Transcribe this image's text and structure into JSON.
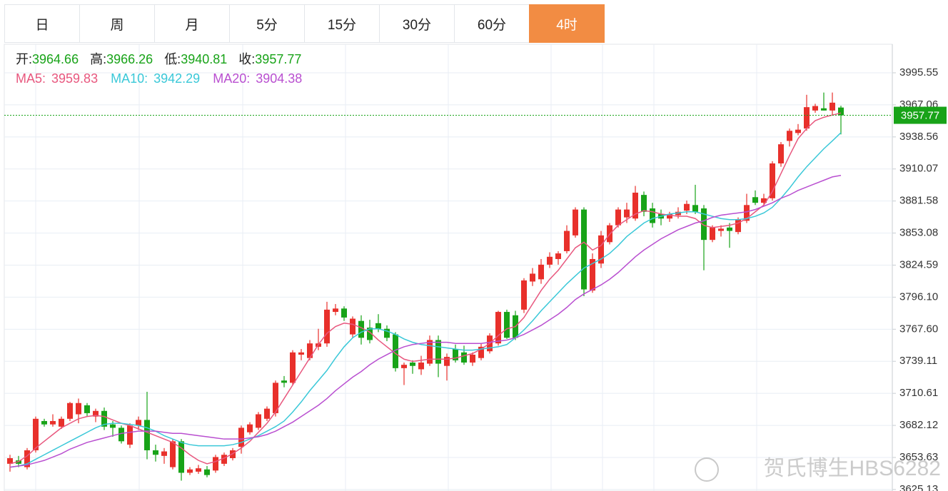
{
  "tabs": [
    "日",
    "周",
    "月",
    "5分",
    "15分",
    "30分",
    "60分",
    "4时"
  ],
  "active_tab": 7,
  "watermark": "贺氏博生HBS6282",
  "chart_data": {
    "type": "candlestick",
    "ohlc_labels": [
      "开:",
      "高:",
      "低:",
      "收:"
    ],
    "up_color": "#e8302b",
    "down_color": "#18a318",
    "grid": true,
    "ylim": [
      3623.81,
      4020.92
    ],
    "yticks": [
      3995.55,
      3967.06,
      3938.56,
      3910.07,
      3881.58,
      3853.08,
      3824.59,
      {
        "value": 3796.1,
        "label": "3796.10"
      },
      {
        "value": 3767.6,
        "label": "3767.60"
      },
      3739.11,
      3710.61,
      3682.12,
      3653.63,
      3625.13
    ],
    "candles": [
      [
        3648,
        3656,
        3641,
        3653
      ],
      [
        3651,
        3655,
        3645,
        3648
      ],
      [
        3645,
        3662,
        3643,
        3660
      ],
      [
        3660,
        3690,
        3658,
        3688
      ],
      [
        3686,
        3688,
        3681,
        3683
      ],
      [
        3683,
        3692,
        3681,
        3686
      ],
      [
        3681,
        3690,
        3679,
        3688
      ],
      [
        3688,
        3703,
        3686,
        3702
      ],
      [
        3692,
        3706,
        3684,
        3702
      ],
      [
        3700,
        3702,
        3690,
        3693
      ],
      [
        3690,
        3697,
        3685,
        3695
      ],
      [
        3695,
        3698,
        3678,
        3681
      ],
      [
        3683,
        3686,
        3672,
        3680
      ],
      [
        3680,
        3682,
        3666,
        3668
      ],
      [
        3665,
        3684,
        3662,
        3682
      ],
      [
        3682,
        3690,
        3678,
        3687
      ],
      [
        3687,
        3712,
        3652,
        3660
      ],
      [
        3660,
        3665,
        3650,
        3656
      ],
      [
        3655,
        3662,
        3648,
        3659
      ],
      [
        3645,
        3670,
        3643,
        3668
      ],
      [
        3668,
        3670,
        3633,
        3640
      ],
      [
        3640,
        3645,
        3638,
        3643
      ],
      [
        3641,
        3647,
        3639,
        3644
      ],
      [
        3643,
        3646,
        3636,
        3638
      ],
      [
        3642,
        3656,
        3640,
        3654
      ],
      [
        3648,
        3658,
        3646,
        3656
      ],
      [
        3653,
        3662,
        3651,
        3660
      ],
      [
        3663,
        3682,
        3657,
        3680
      ],
      [
        3676,
        3685,
        3674,
        3683
      ],
      [
        3680,
        3694,
        3678,
        3692
      ],
      [
        3688,
        3699,
        3686,
        3697
      ],
      [
        3693,
        3722,
        3690,
        3720
      ],
      [
        3722,
        3726,
        3716,
        3720
      ],
      [
        3720,
        3749,
        3718,
        3747
      ],
      [
        3745,
        3750,
        3740,
        3747
      ],
      [
        3742,
        3758,
        3740,
        3755
      ],
      [
        3752,
        3768,
        3749,
        3755
      ],
      [
        3755,
        3792,
        3752,
        3785
      ],
      [
        3783,
        3790,
        3780,
        3786
      ],
      [
        3786,
        3788,
        3775,
        3778
      ],
      [
        3763,
        3779,
        3760,
        3777
      ],
      [
        3775,
        3780,
        3754,
        3760
      ],
      [
        3769,
        3776,
        3755,
        3758
      ],
      [
        3773,
        3781,
        3765,
        3768
      ],
      [
        3768,
        3771,
        3757,
        3760
      ],
      [
        3763,
        3765,
        3730,
        3733
      ],
      [
        3733,
        3738,
        3718,
        3736
      ],
      [
        3738,
        3740,
        3728,
        3735
      ],
      [
        3732,
        3744,
        3727,
        3738
      ],
      [
        3737,
        3762,
        3735,
        3758
      ],
      [
        3758,
        3762,
        3725,
        3737
      ],
      [
        3735,
        3746,
        3722,
        3743
      ],
      [
        3750,
        3754,
        3738,
        3740
      ],
      [
        3747,
        3753,
        3736,
        3738
      ],
      [
        3738,
        3747,
        3735,
        3745
      ],
      [
        3742,
        3755,
        3740,
        3752
      ],
      [
        3748,
        3764,
        3746,
        3762
      ],
      [
        3755,
        3784,
        3753,
        3783
      ],
      [
        3783,
        3785,
        3759,
        3760
      ],
      [
        3780,
        3784,
        3758,
        3760
      ],
      [
        3785,
        3813,
        3782,
        3811
      ],
      [
        3810,
        3822,
        3806,
        3817
      ],
      [
        3812,
        3830,
        3808,
        3825
      ],
      [
        3825,
        3836,
        3822,
        3832
      ],
      [
        3830,
        3837,
        3825,
        3835
      ],
      [
        3837,
        3860,
        3835,
        3855
      ],
      [
        3851,
        3876,
        3849,
        3874
      ],
      [
        3874,
        3876,
        3797,
        3803
      ],
      [
        3802,
        3835,
        3800,
        3830
      ],
      [
        3826,
        3855,
        3822,
        3851
      ],
      [
        3845,
        3862,
        3843,
        3860
      ],
      [
        3860,
        3876,
        3858,
        3874
      ],
      [
        3867,
        3880,
        3862,
        3874
      ],
      [
        3866,
        3895,
        3864,
        3889
      ],
      [
        3887,
        3890,
        3868,
        3872
      ],
      [
        3875,
        3880,
        3858,
        3862
      ],
      [
        3870,
        3874,
        3860,
        3866
      ],
      [
        3866,
        3872,
        3863,
        3870
      ],
      [
        3869,
        3876,
        3866,
        3872
      ],
      [
        3873,
        3882,
        3870,
        3879
      ],
      [
        3878,
        3896,
        3870,
        3872
      ],
      [
        3875,
        3878,
        3820,
        3847
      ],
      [
        3847,
        3860,
        3845,
        3858
      ],
      [
        3855,
        3860,
        3850,
        3857
      ],
      [
        3858,
        3862,
        3840,
        3855
      ],
      [
        3854,
        3867,
        3852,
        3865
      ],
      [
        3864,
        3888,
        3862,
        3878
      ],
      [
        3885,
        3891,
        3878,
        3880
      ],
      [
        3880,
        3888,
        3878,
        3884
      ],
      [
        3884,
        3917,
        3882,
        3915
      ],
      [
        3915,
        3934,
        3912,
        3932
      ],
      [
        3935,
        3946,
        3930,
        3944
      ],
      [
        3942,
        3950,
        3940,
        3945
      ],
      [
        3946,
        3976,
        3944,
        3965
      ],
      [
        3962,
        3968,
        3960,
        3966
      ],
      [
        3964,
        3978,
        3962,
        3962
      ],
      [
        3962,
        3978,
        3958,
        3969
      ],
      [
        3964.66,
        3966.26,
        3940.81,
        3957.77
      ]
    ],
    "series": [
      {
        "name": "MA5:",
        "color": "#e8577e",
        "values": [
          3648,
          3650,
          3655,
          3662,
          3668,
          3674,
          3680,
          3684,
          3688,
          3690,
          3691,
          3690,
          3687,
          3684,
          3682,
          3679,
          3676,
          3673,
          3670,
          3667,
          3662,
          3656,
          3651,
          3648,
          3650,
          3653,
          3657,
          3662,
          3668,
          3676,
          3684,
          3694,
          3706,
          3718,
          3730,
          3742,
          3754,
          3764,
          3770,
          3773,
          3772,
          3769,
          3765,
          3758,
          3752,
          3746,
          3741,
          3739,
          3740,
          3741,
          3741,
          3741,
          3742,
          3744,
          3746,
          3750,
          3755,
          3762,
          3768,
          3770,
          3778,
          3790,
          3802,
          3812,
          3820,
          3830,
          3840,
          3845,
          3838,
          3842,
          3852,
          3860,
          3865,
          3870,
          3873,
          3872,
          3870,
          3869,
          3868,
          3868,
          3866,
          3860,
          3858,
          3859,
          3860,
          3862,
          3866,
          3872,
          3878,
          3890,
          3906,
          3922,
          3937,
          3946,
          3953,
          3956,
          3958,
          3959.83
        ]
      },
      {
        "name": "MA10:",
        "color": "#3ac8d8",
        "values": [
          3645,
          3646,
          3648,
          3652,
          3656,
          3660,
          3664,
          3668,
          3672,
          3676,
          3680,
          3683,
          3684,
          3684,
          3683,
          3682,
          3680,
          3677,
          3673,
          3670,
          3667,
          3665,
          3664,
          3664,
          3664,
          3664,
          3665,
          3667,
          3670,
          3673,
          3677,
          3681,
          3686,
          3694,
          3703,
          3713,
          3722,
          3731,
          3742,
          3752,
          3760,
          3765,
          3768,
          3768,
          3766,
          3763,
          3759,
          3756,
          3754,
          3753,
          3752,
          3751,
          3750,
          3749,
          3749,
          3750,
          3751,
          3752,
          3754,
          3760,
          3767,
          3775,
          3784,
          3792,
          3800,
          3808,
          3815,
          3822,
          3826,
          3830,
          3835,
          3842,
          3850,
          3856,
          3862,
          3866,
          3868,
          3870,
          3871,
          3872,
          3872,
          3870,
          3868,
          3866,
          3865,
          3865,
          3866,
          3868,
          3871,
          3876,
          3884,
          3893,
          3903,
          3912,
          3920,
          3928,
          3935,
          3942.29
        ]
      },
      {
        "name": "MA20:",
        "color": "#b94fd0",
        "values": [
          3645,
          3646,
          3647,
          3649,
          3651,
          3654,
          3657,
          3661,
          3664,
          3667,
          3669,
          3671,
          3673,
          3675,
          3676,
          3677,
          3677,
          3677,
          3676,
          3675,
          3675,
          3674,
          3673,
          3672,
          3671,
          3670,
          3670,
          3670,
          3671,
          3672,
          3674,
          3677,
          3681,
          3685,
          3690,
          3695,
          3700,
          3706,
          3713,
          3719,
          3725,
          3730,
          3736,
          3741,
          3745,
          3749,
          3752,
          3754,
          3755,
          3756,
          3756,
          3756,
          3755,
          3755,
          3755,
          3755,
          3756,
          3757,
          3758,
          3760,
          3763,
          3767,
          3771,
          3776,
          3781,
          3787,
          3794,
          3799,
          3803,
          3807,
          3812,
          3818,
          3825,
          3832,
          3838,
          3843,
          3848,
          3852,
          3856,
          3859,
          3862,
          3864,
          3867,
          3869,
          3870,
          3871,
          3872,
          3874,
          3877,
          3880,
          3884,
          3887,
          3891,
          3894,
          3897,
          3900,
          3903,
          3904.38
        ]
      }
    ]
  }
}
